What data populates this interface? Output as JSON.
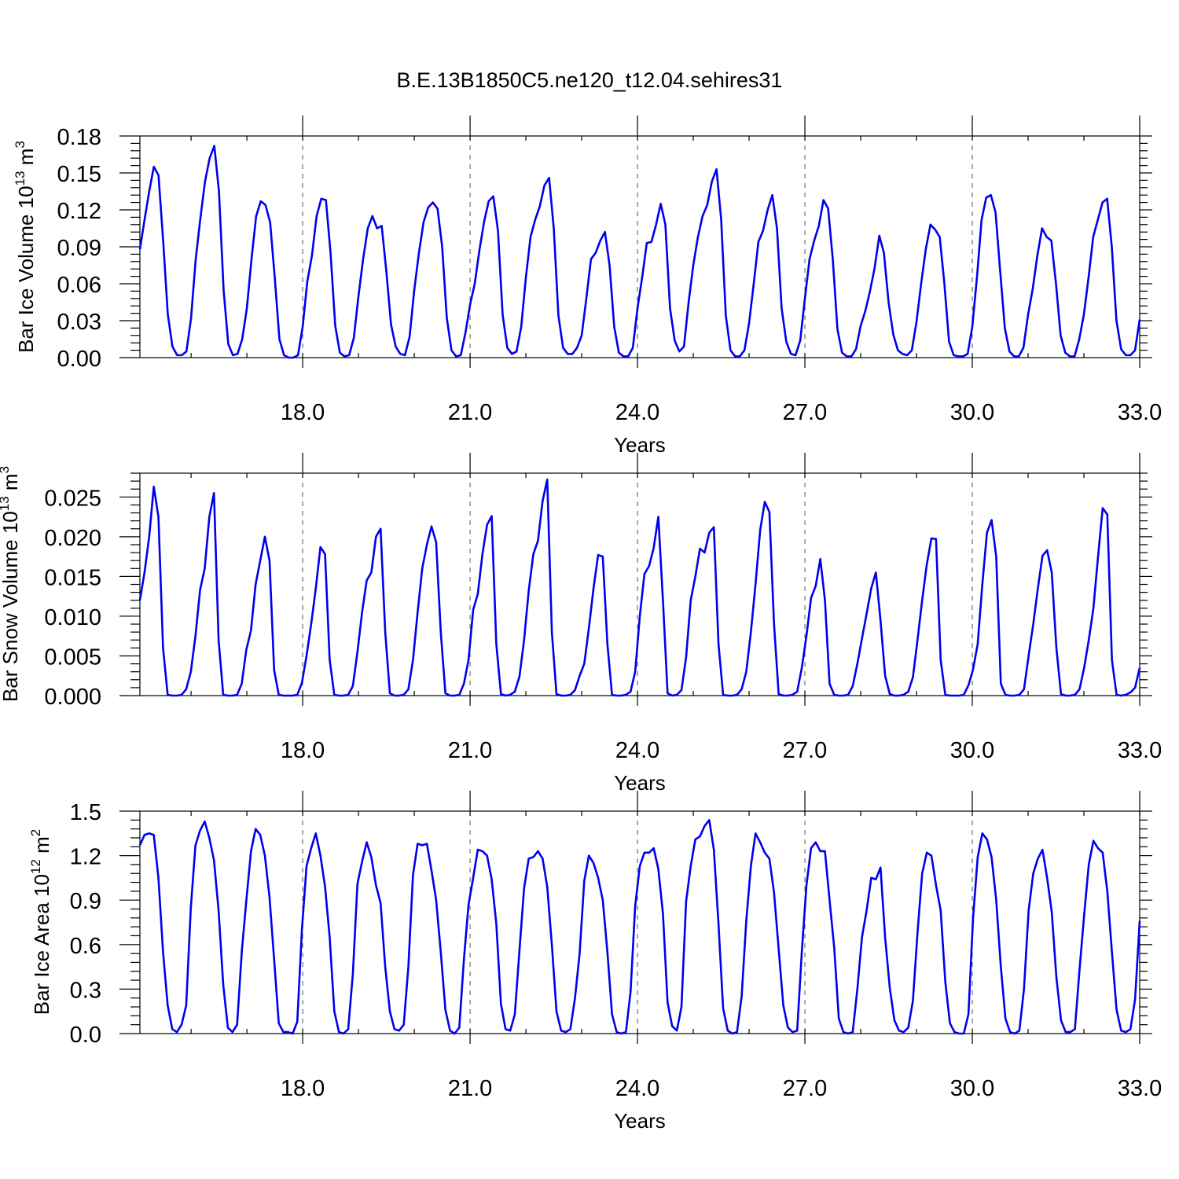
{
  "title": "B.E.13B1850C5.ne120_t12.04.sehires31",
  "colors": {
    "series": "#0000ee",
    "axis": "#000000",
    "grid": "#555555"
  },
  "chart_data": [
    {
      "type": "line",
      "ylabel": {
        "text": "Bar Ice Volume 10",
        "exp": "13",
        "unit": " m",
        "unit_exp": "3"
      },
      "xlabel": "Years",
      "xlim": [
        15.083,
        33.0
      ],
      "ylim": [
        0.0,
        0.18
      ],
      "x_ticks": [
        "18.0",
        "21.0",
        "24.0",
        "27.0",
        "30.0",
        "33.0"
      ],
      "y_ticks": [
        "0.00",
        "0.03",
        "0.06",
        "0.09",
        "0.12",
        "0.15",
        "0.18"
      ],
      "grid": "vertical dashed at major x ticks",
      "series": [
        {
          "values": [
            0.088,
            0.112,
            0.135,
            0.155,
            0.148,
            0.095,
            0.035,
            0.009,
            0.002,
            0.002,
            0.005,
            0.032,
            0.08,
            0.113,
            0.143,
            0.162,
            0.172,
            0.135,
            0.055,
            0.011,
            0.002,
            0.003,
            0.015,
            0.04,
            0.08,
            0.115,
            0.127,
            0.124,
            0.11,
            0.065,
            0.015,
            0.002,
            0.0,
            0.0,
            0.002,
            0.025,
            0.062,
            0.083,
            0.115,
            0.129,
            0.128,
            0.085,
            0.026,
            0.004,
            0.001,
            0.002,
            0.016,
            0.05,
            0.08,
            0.105,
            0.115,
            0.105,
            0.107,
            0.07,
            0.027,
            0.009,
            0.003,
            0.002,
            0.017,
            0.055,
            0.085,
            0.11,
            0.122,
            0.126,
            0.121,
            0.09,
            0.032,
            0.006,
            0.001,
            0.002,
            0.02,
            0.043,
            0.06,
            0.087,
            0.11,
            0.127,
            0.131,
            0.103,
            0.035,
            0.008,
            0.003,
            0.005,
            0.025,
            0.065,
            0.098,
            0.112,
            0.123,
            0.14,
            0.146,
            0.105,
            0.034,
            0.008,
            0.003,
            0.003,
            0.008,
            0.018,
            0.048,
            0.08,
            0.085,
            0.095,
            0.102,
            0.075,
            0.025,
            0.004,
            0.001,
            0.001,
            0.008,
            0.04,
            0.065,
            0.093,
            0.094,
            0.108,
            0.125,
            0.108,
            0.04,
            0.014,
            0.005,
            0.009,
            0.045,
            0.075,
            0.098,
            0.115,
            0.124,
            0.143,
            0.153,
            0.112,
            0.034,
            0.006,
            0.001,
            0.001,
            0.006,
            0.028,
            0.06,
            0.094,
            0.103,
            0.12,
            0.132,
            0.105,
            0.04,
            0.013,
            0.003,
            0.002,
            0.014,
            0.048,
            0.08,
            0.095,
            0.107,
            0.128,
            0.121,
            0.08,
            0.023,
            0.004,
            0.001,
            0.001,
            0.007,
            0.026,
            0.038,
            0.054,
            0.073,
            0.099,
            0.085,
            0.045,
            0.019,
            0.006,
            0.003,
            0.002,
            0.006,
            0.029,
            0.06,
            0.088,
            0.108,
            0.104,
            0.098,
            0.06,
            0.013,
            0.002,
            0.001,
            0.001,
            0.003,
            0.025,
            0.065,
            0.112,
            0.13,
            0.132,
            0.118,
            0.07,
            0.024,
            0.005,
            0.001,
            0.001,
            0.008,
            0.035,
            0.056,
            0.083,
            0.105,
            0.098,
            0.095,
            0.06,
            0.018,
            0.004,
            0.001,
            0.001,
            0.015,
            0.035,
            0.065,
            0.098,
            0.112,
            0.126,
            0.129,
            0.09,
            0.03,
            0.007,
            0.002,
            0.002,
            0.006,
            0.031
          ]
        }
      ]
    },
    {
      "type": "line",
      "ylabel": {
        "text": "Bar Snow Volume 10",
        "exp": "13",
        "unit": " m",
        "unit_exp": "3"
      },
      "xlabel": "Years",
      "xlim": [
        15.083,
        33.0
      ],
      "ylim": [
        0.0,
        0.028
      ],
      "x_ticks": [
        "18.0",
        "21.0",
        "24.0",
        "27.0",
        "30.0",
        "33.0"
      ],
      "y_ticks": [
        "0.000",
        "0.005",
        "0.010",
        "0.015",
        "0.020",
        "0.025"
      ],
      "grid": "vertical dashed at major x ticks",
      "series": [
        {
          "values": [
            0.012,
            0.0155,
            0.02,
            0.0263,
            0.0225,
            0.006,
            0.0001,
            0.0,
            0.0,
            0.0001,
            0.0008,
            0.003,
            0.0075,
            0.0133,
            0.016,
            0.0225,
            0.0255,
            0.007,
            0.0001,
            0.0,
            0.0,
            0.0001,
            0.0015,
            0.0058,
            0.0082,
            0.014,
            0.017,
            0.02,
            0.017,
            0.0032,
            0.0001,
            0.0,
            0.0,
            0.0,
            0.0001,
            0.0016,
            0.005,
            0.009,
            0.0135,
            0.0187,
            0.0178,
            0.0045,
            0.0001,
            0.0,
            0.0,
            0.0001,
            0.0012,
            0.0055,
            0.0105,
            0.0145,
            0.0155,
            0.02,
            0.021,
            0.008,
            0.0003,
            0.0,
            0.0,
            0.0001,
            0.0008,
            0.0045,
            0.0105,
            0.016,
            0.019,
            0.0213,
            0.0193,
            0.008,
            0.0003,
            0.0,
            0.0,
            0.0001,
            0.0015,
            0.0045,
            0.0108,
            0.0128,
            0.0178,
            0.0215,
            0.0226,
            0.0065,
            0.0002,
            0.0,
            0.0001,
            0.0005,
            0.0024,
            0.007,
            0.0132,
            0.0178,
            0.0195,
            0.0245,
            0.0272,
            0.008,
            0.0002,
            0.0,
            0.0,
            0.0001,
            0.0007,
            0.0025,
            0.004,
            0.0085,
            0.0135,
            0.0177,
            0.0175,
            0.0065,
            0.0001,
            0.0,
            0.0,
            0.0001,
            0.0005,
            0.003,
            0.01,
            0.0153,
            0.0163,
            0.0186,
            0.0225,
            0.012,
            0.0003,
            0.0,
            0.0001,
            0.0007,
            0.0048,
            0.012,
            0.015,
            0.0185,
            0.018,
            0.0205,
            0.0212,
            0.0065,
            0.0001,
            0.0,
            0.0,
            0.0001,
            0.0008,
            0.003,
            0.008,
            0.014,
            0.0208,
            0.0244,
            0.0231,
            0.009,
            0.0002,
            0.0,
            0.0,
            0.0001,
            0.0005,
            0.0035,
            0.0075,
            0.0123,
            0.0138,
            0.0172,
            0.012,
            0.0015,
            0.0001,
            0.0,
            0.0,
            0.0001,
            0.0012,
            0.004,
            0.0072,
            0.0103,
            0.0135,
            0.0155,
            0.0095,
            0.0025,
            0.0002,
            0.0,
            0.0,
            0.0001,
            0.0005,
            0.0023,
            0.007,
            0.012,
            0.0165,
            0.0198,
            0.0197,
            0.0045,
            0.0001,
            0.0,
            0.0,
            0.0,
            0.0001,
            0.0013,
            0.0033,
            0.0065,
            0.014,
            0.0205,
            0.0221,
            0.0175,
            0.0015,
            0.0001,
            0.0,
            0.0,
            0.0001,
            0.0008,
            0.005,
            0.009,
            0.0135,
            0.0176,
            0.0183,
            0.0155,
            0.006,
            0.0002,
            0.0,
            0.0,
            0.0001,
            0.0008,
            0.0035,
            0.007,
            0.011,
            0.0175,
            0.0236,
            0.0228,
            0.0045,
            0.0001,
            0.0,
            0.0001,
            0.0004,
            0.001,
            0.0035
          ]
        }
      ]
    },
    {
      "type": "line",
      "ylabel": {
        "text": "Bar Ice Area 10",
        "exp": "12",
        "unit": " m",
        "unit_exp": "2"
      },
      "xlabel": "Years",
      "xlim": [
        15.083,
        33.0
      ],
      "ylim": [
        0.0,
        1.5
      ],
      "x_ticks": [
        "18.0",
        "21.0",
        "24.0",
        "27.0",
        "30.0",
        "33.0"
      ],
      "y_ticks": [
        "0.0",
        "0.3",
        "0.6",
        "0.9",
        "1.2",
        "1.5"
      ],
      "grid": "vertical dashed at major x ticks",
      "series": [
        {
          "values": [
            1.27,
            1.34,
            1.35,
            1.34,
            1.05,
            0.55,
            0.19,
            0.03,
            0.01,
            0.06,
            0.19,
            0.85,
            1.27,
            1.37,
            1.43,
            1.32,
            1.17,
            0.83,
            0.33,
            0.04,
            0.01,
            0.06,
            0.55,
            0.9,
            1.23,
            1.38,
            1.34,
            1.2,
            0.92,
            0.5,
            0.07,
            0.01,
            0.01,
            0.0,
            0.08,
            0.7,
            1.13,
            1.25,
            1.35,
            1.2,
            0.99,
            0.65,
            0.15,
            0.01,
            0.0,
            0.03,
            0.4,
            1.01,
            1.16,
            1.29,
            1.19,
            1.0,
            0.88,
            0.45,
            0.15,
            0.03,
            0.02,
            0.06,
            0.45,
            1.07,
            1.28,
            1.27,
            1.28,
            1.1,
            0.9,
            0.55,
            0.16,
            0.02,
            0.0,
            0.04,
            0.5,
            0.87,
            1.05,
            1.24,
            1.23,
            1.2,
            1.04,
            0.74,
            0.2,
            0.03,
            0.02,
            0.13,
            0.56,
            0.98,
            1.18,
            1.19,
            1.23,
            1.18,
            0.99,
            0.6,
            0.15,
            0.02,
            0.01,
            0.03,
            0.24,
            0.54,
            1.03,
            1.2,
            1.15,
            1.05,
            0.9,
            0.55,
            0.13,
            0.01,
            0.0,
            0.01,
            0.28,
            0.86,
            1.13,
            1.22,
            1.22,
            1.25,
            1.11,
            0.81,
            0.21,
            0.05,
            0.02,
            0.18,
            0.89,
            1.13,
            1.31,
            1.33,
            1.4,
            1.44,
            1.24,
            0.74,
            0.17,
            0.02,
            0.0,
            0.01,
            0.25,
            0.76,
            1.13,
            1.35,
            1.29,
            1.22,
            1.18,
            0.95,
            0.57,
            0.19,
            0.04,
            0.01,
            0.02,
            0.55,
            1.0,
            1.25,
            1.29,
            1.23,
            1.23,
            0.9,
            0.58,
            0.1,
            0.01,
            0.0,
            0.01,
            0.3,
            0.65,
            0.83,
            1.05,
            1.04,
            1.12,
            0.65,
            0.31,
            0.09,
            0.02,
            0.01,
            0.04,
            0.22,
            0.68,
            1.08,
            1.22,
            1.2,
            1.0,
            0.83,
            0.35,
            0.07,
            0.01,
            0.0,
            0.0,
            0.13,
            0.78,
            1.19,
            1.35,
            1.31,
            1.19,
            0.9,
            0.45,
            0.1,
            0.01,
            0.0,
            0.02,
            0.3,
            0.83,
            1.08,
            1.18,
            1.24,
            1.05,
            0.82,
            0.38,
            0.09,
            0.01,
            0.01,
            0.03,
            0.43,
            0.8,
            1.14,
            1.3,
            1.25,
            1.22,
            0.96,
            0.55,
            0.16,
            0.02,
            0.01,
            0.03,
            0.23,
            0.76
          ]
        }
      ]
    }
  ]
}
